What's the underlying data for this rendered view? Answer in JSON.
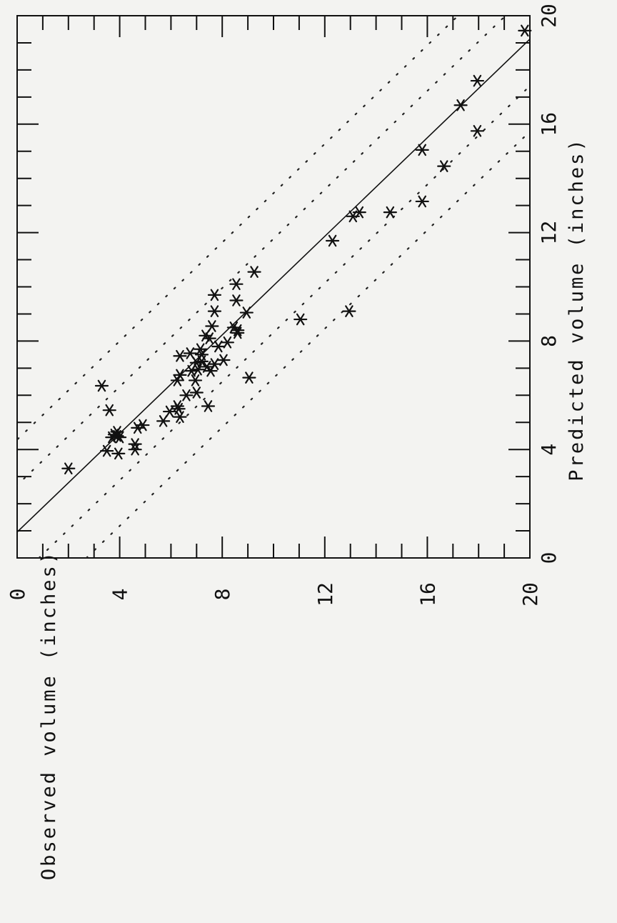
{
  "chart_data": {
    "type": "scatter",
    "xlabel": "Predicted volume (inches)",
    "ylabel": "Observed volume (inches)",
    "xlim": [
      0,
      20
    ],
    "ylim": [
      0,
      20
    ],
    "x_ticks": [
      "0",
      "4",
      "8",
      "12",
      "16",
      "20"
    ],
    "y_ticks": [
      "0",
      "4",
      "8",
      "12",
      "16",
      "20"
    ],
    "grid": false,
    "marker": "asterisk",
    "fit_line": {
      "intercept": -1.05,
      "slope": 1.1
    },
    "bands": [
      {
        "intercept": -2.95,
        "slope": 1.1
      },
      {
        "intercept": -4.8,
        "slope": 1.1
      },
      {
        "intercept": 0.85,
        "slope": 1.1
      },
      {
        "intercept": 2.7,
        "slope": 1.1
      }
    ],
    "points": [
      [
        19.45,
        19.8
      ],
      [
        17.6,
        17.95
      ],
      [
        16.7,
        17.3
      ],
      [
        15.75,
        17.95
      ],
      [
        15.05,
        15.8
      ],
      [
        14.45,
        16.65
      ],
      [
        13.15,
        15.8
      ],
      [
        12.75,
        14.55
      ],
      [
        12.75,
        13.35
      ],
      [
        12.6,
        13.1
      ],
      [
        11.7,
        12.3
      ],
      [
        10.55,
        9.25
      ],
      [
        10.1,
        8.55
      ],
      [
        9.7,
        7.7
      ],
      [
        9.5,
        8.55
      ],
      [
        9.1,
        12.95
      ],
      [
        9.1,
        7.7
      ],
      [
        9.05,
        8.95
      ],
      [
        8.8,
        11.05
      ],
      [
        8.55,
        7.6
      ],
      [
        8.5,
        8.45
      ],
      [
        8.4,
        8.6
      ],
      [
        8.3,
        8.6
      ],
      [
        8.2,
        7.35
      ],
      [
        8.1,
        7.5
      ],
      [
        7.95,
        8.2
      ],
      [
        7.8,
        7.85
      ],
      [
        7.7,
        7.15
      ],
      [
        7.55,
        6.75
      ],
      [
        7.5,
        7.2
      ],
      [
        7.45,
        6.35
      ],
      [
        7.3,
        8.05
      ],
      [
        7.25,
        7.2
      ],
      [
        7.2,
        7.0
      ],
      [
        7.15,
        7.7
      ],
      [
        7.05,
        7.4
      ],
      [
        6.95,
        7.05
      ],
      [
        6.9,
        7.55
      ],
      [
        6.9,
        6.8
      ],
      [
        6.75,
        6.35
      ],
      [
        6.65,
        9.05
      ],
      [
        6.55,
        6.25
      ],
      [
        6.55,
        6.95
      ],
      [
        6.35,
        3.3
      ],
      [
        6.1,
        7.0
      ],
      [
        6.0,
        6.6
      ],
      [
        5.6,
        6.25
      ],
      [
        5.6,
        7.45
      ],
      [
        5.5,
        6.3
      ],
      [
        5.45,
        3.6
      ],
      [
        5.4,
        5.95
      ],
      [
        5.2,
        6.35
      ],
      [
        5.05,
        5.7
      ],
      [
        4.9,
        4.9
      ],
      [
        4.8,
        4.7
      ],
      [
        4.65,
        3.9
      ],
      [
        4.55,
        3.8
      ],
      [
        4.5,
        3.9
      ],
      [
        4.45,
        4.0
      ],
      [
        4.45,
        3.7
      ],
      [
        4.2,
        4.6
      ],
      [
        4.0,
        4.6
      ],
      [
        3.95,
        3.5
      ],
      [
        3.85,
        3.95
      ],
      [
        3.3,
        2.0
      ]
    ]
  }
}
